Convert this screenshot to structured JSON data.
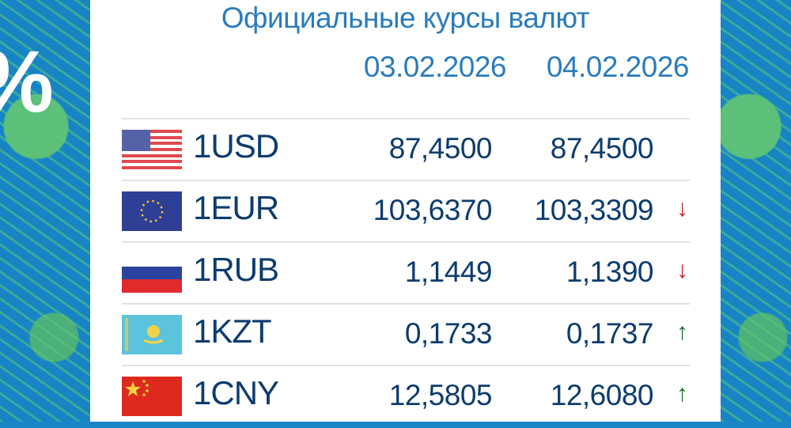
{
  "background_symbol": "%",
  "title": "Официальные курсы валют",
  "dates": [
    "03.02.2026",
    "04.02.2026"
  ],
  "colors": {
    "title": "#2b7cbc",
    "value": "#0d3c6e",
    "up": "#1d6b2c",
    "down": "#c0202a"
  },
  "rates": [
    {
      "flag": "us-flag-icon",
      "code": "1USD",
      "prev": "87,4500",
      "curr": "87,4500",
      "trend": "none"
    },
    {
      "flag": "eu-flag-icon",
      "code": "1EUR",
      "prev": "103,6370",
      "curr": "103,3309",
      "trend": "down",
      "arrow": "↓"
    },
    {
      "flag": "ru-flag-icon",
      "code": "1RUB",
      "prev": "1,1449",
      "curr": "1,1390",
      "trend": "down",
      "arrow": "↓"
    },
    {
      "flag": "kz-flag-icon",
      "code": "1KZT",
      "prev": "0,1733",
      "curr": "0,1737",
      "trend": "up",
      "arrow": "↑"
    },
    {
      "flag": "cn-flag-icon",
      "code": "1CNY",
      "prev": "12,5805",
      "curr": "12,6080",
      "trend": "up",
      "arrow": "↑"
    }
  ]
}
